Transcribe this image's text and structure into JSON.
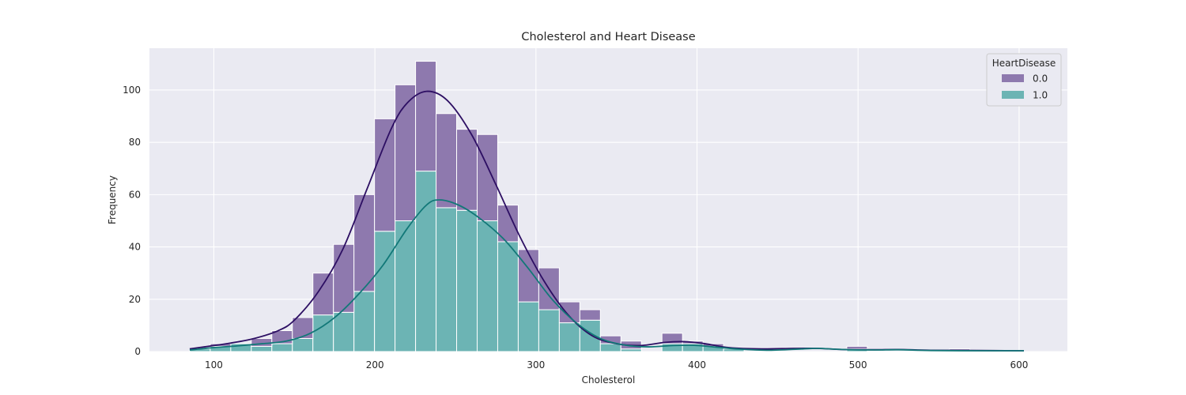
{
  "chart_data": {
    "type": "histogram",
    "title": "Cholesterol and Heart Disease",
    "xlabel": "Cholesterol",
    "ylabel": "Frequency",
    "xlim": [
      60,
      630
    ],
    "ylim": [
      0,
      116
    ],
    "xticks": [
      100,
      200,
      300,
      400,
      500,
      600
    ],
    "yticks": [
      0,
      20,
      40,
      60,
      80,
      100
    ],
    "grid": true,
    "stacked": true,
    "legend": {
      "title": "HeartDisease",
      "placement": "top-right",
      "entries": [
        "0.0",
        "1.0"
      ]
    },
    "bin_width": 12.75,
    "bins_start": 85,
    "series": [
      {
        "name": "1.0",
        "color": "#6cb4b4",
        "counts": [
          1,
          2,
          3,
          2,
          3,
          5,
          14,
          15,
          23,
          46,
          50,
          69,
          55,
          54,
          50,
          42,
          19,
          16,
          11,
          12,
          3,
          1,
          0,
          3,
          3,
          2,
          1,
          0,
          0,
          0,
          0,
          0,
          1,
          0,
          0,
          0,
          0,
          0,
          0,
          0,
          0
        ]
      },
      {
        "name": "0.0",
        "color": "#8e79ae",
        "counts": [
          0,
          1,
          0,
          3,
          5,
          8,
          16,
          26,
          37,
          43,
          52,
          42,
          36,
          31,
          33,
          14,
          20,
          16,
          8,
          4,
          3,
          3,
          0,
          4,
          1,
          1,
          0,
          0,
          0,
          0,
          0,
          0,
          1,
          0,
          0,
          0,
          0,
          1,
          0,
          0,
          0
        ]
      }
    ],
    "kde": [
      {
        "name": "0.0",
        "color": "#2d0f63",
        "points": [
          [
            85,
            1
          ],
          [
            100,
            2.3
          ],
          [
            110,
            3.2
          ],
          [
            125,
            5
          ],
          [
            140,
            8
          ],
          [
            150,
            12
          ],
          [
            165,
            23
          ],
          [
            180,
            39
          ],
          [
            195,
            62
          ],
          [
            210,
            85
          ],
          [
            220,
            95
          ],
          [
            232,
            99.5
          ],
          [
            245,
            96
          ],
          [
            260,
            83
          ],
          [
            275,
            64
          ],
          [
            290,
            44
          ],
          [
            305,
            27
          ],
          [
            320,
            14
          ],
          [
            335,
            6
          ],
          [
            350,
            3
          ],
          [
            365,
            2.3
          ],
          [
            380,
            3.5
          ],
          [
            392,
            3.8
          ],
          [
            405,
            3
          ],
          [
            420,
            1.5
          ],
          [
            440,
            1
          ],
          [
            460,
            1.2
          ],
          [
            475,
            1.2
          ],
          [
            490,
            0.8
          ],
          [
            510,
            0.7
          ],
          [
            525,
            0.8
          ],
          [
            545,
            0.5
          ],
          [
            575,
            0.4
          ],
          [
            603,
            0.3
          ]
        ]
      },
      {
        "name": "1.0",
        "color": "#127878",
        "points": [
          [
            85,
            0.6
          ],
          [
            100,
            1.5
          ],
          [
            115,
            2.2
          ],
          [
            130,
            3
          ],
          [
            145,
            4
          ],
          [
            160,
            7
          ],
          [
            175,
            13
          ],
          [
            190,
            22
          ],
          [
            205,
            33
          ],
          [
            220,
            47
          ],
          [
            232,
            56
          ],
          [
            240,
            58
          ],
          [
            252,
            56
          ],
          [
            265,
            51
          ],
          [
            280,
            43
          ],
          [
            295,
            32
          ],
          [
            310,
            20
          ],
          [
            325,
            11
          ],
          [
            340,
            5
          ],
          [
            355,
            2.5
          ],
          [
            370,
            1.8
          ],
          [
            385,
            2.3
          ],
          [
            398,
            2.4
          ],
          [
            410,
            1.8
          ],
          [
            425,
            1
          ],
          [
            445,
            0.5
          ],
          [
            465,
            1
          ],
          [
            475,
            1.2
          ],
          [
            490,
            0.8
          ],
          [
            510,
            0.6
          ],
          [
            525,
            0.7
          ],
          [
            545,
            0.4
          ],
          [
            575,
            0.3
          ],
          [
            603,
            0.3
          ]
        ]
      }
    ]
  }
}
